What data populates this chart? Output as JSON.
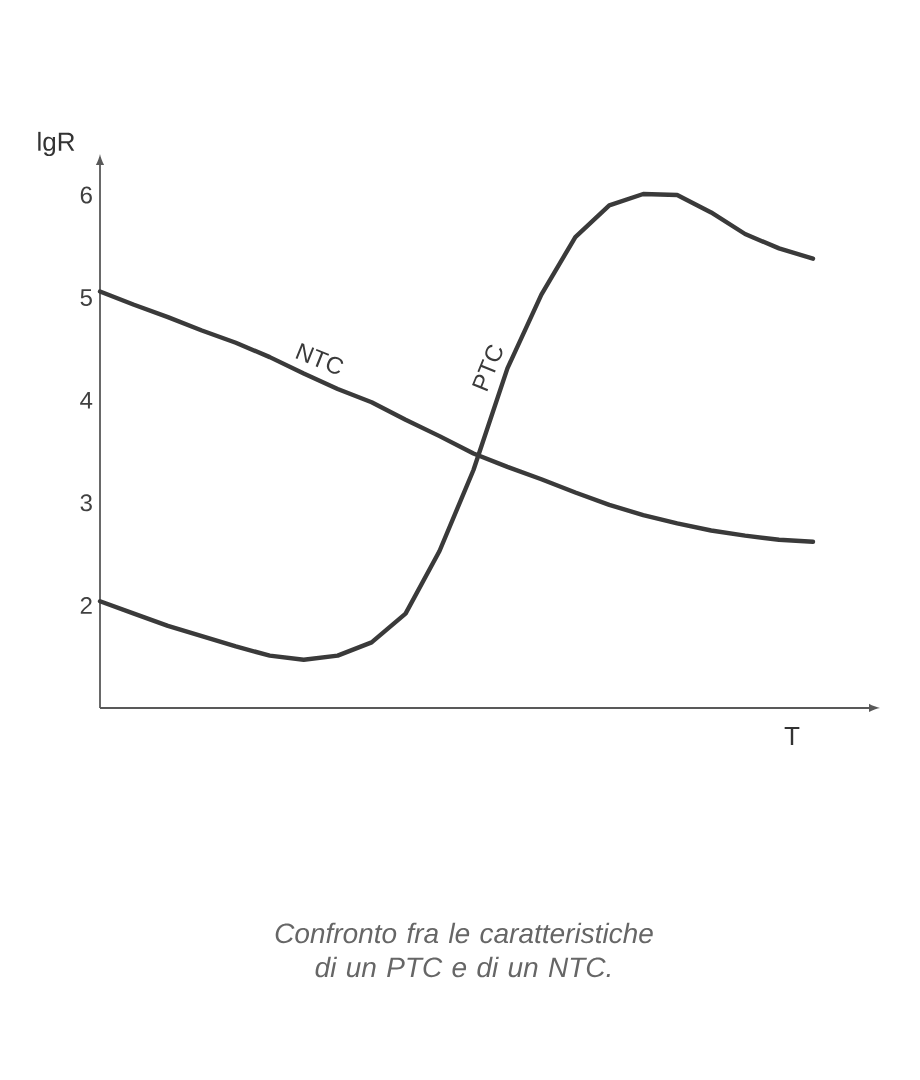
{
  "chart_data": {
    "type": "line",
    "xlabel": "T",
    "ylabel": "lgR",
    "categories": [
      null,
      null,
      null,
      null,
      null,
      null,
      null,
      null,
      null,
      null,
      null,
      null,
      null,
      null,
      null,
      null,
      null,
      null,
      null,
      null,
      null,
      null
    ],
    "series": [
      {
        "name": "NTC",
        "color": "#3a3a3a",
        "values": [
          5.06,
          4.93,
          4.81,
          4.68,
          4.56,
          4.42,
          4.26,
          4.11,
          3.98,
          3.81,
          3.65,
          3.48,
          3.35,
          3.23,
          3.1,
          2.98,
          2.88,
          2.8,
          2.73,
          2.68,
          2.64,
          2.62
        ]
      },
      {
        "name": "PTC",
        "color": "#3a3a3a",
        "values": [
          2.04,
          1.92,
          1.8,
          1.7,
          1.6,
          1.51,
          1.47,
          1.51,
          1.64,
          1.92,
          2.53,
          3.32,
          4.31,
          5.03,
          5.59,
          5.9,
          6.01,
          6.0,
          5.83,
          5.62,
          5.48,
          5.38
        ]
      }
    ],
    "ylim": [
      1,
      6.4
    ],
    "yticks": [
      2,
      3,
      4,
      5,
      6
    ],
    "tick_labels": "y",
    "line_style": "solid",
    "marker": "none",
    "annotations": [
      "Confronto fra le caratteristiche di un PTC e di un NTC."
    ]
  }
}
